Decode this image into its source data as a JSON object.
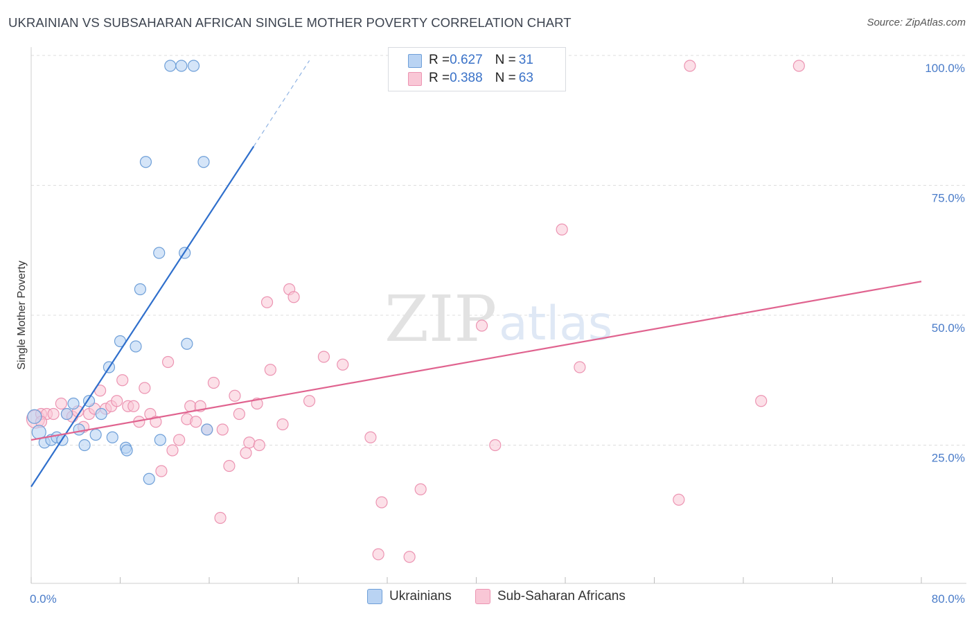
{
  "header": {
    "title": "UKRAINIAN VS SUBSAHARAN AFRICAN SINGLE MOTHER POVERTY CORRELATION CHART",
    "source": "Source: ZipAtlas.com"
  },
  "legend_top": {
    "rows": [
      {
        "r_label": "R = ",
        "r_value": "0.627",
        "n_label": "N = ",
        "n_value": "31"
      },
      {
        "r_label": "R = ",
        "r_value": "0.388",
        "n_label": "N = ",
        "n_value": "63"
      }
    ]
  },
  "legend_bottom": {
    "items": [
      "Ukrainians",
      "Sub-Saharan Africans"
    ]
  },
  "watermark": {
    "zip": "ZIP",
    "atlas": "atlas"
  },
  "colors": {
    "ukrainians_fill": "#b9d3f3",
    "ukrainians_stroke": "#6e9fd8",
    "ukrainians_line": "#2f6fcc",
    "africans_fill": "#f9c7d6",
    "africans_stroke": "#ec94b2",
    "africans_line": "#e0638f",
    "tick_text": "#4a7cc9",
    "grid": "#dddddd"
  },
  "chart_data": {
    "type": "scatter",
    "title": "UKRAINIAN VS SUBSAHARAN AFRICAN SINGLE MOTHER POVERTY CORRELATION CHART",
    "ylabel": "Single Mother Poverty",
    "xlabel": "",
    "xlim": [
      0,
      80
    ],
    "ylim": [
      0,
      100
    ],
    "x_tick_labels": [
      "0.0%",
      "80.0%"
    ],
    "y_tick_labels": [
      "25.0%",
      "50.0%",
      "75.0%",
      "100.0%"
    ],
    "y_ticks": [
      25,
      50,
      75,
      100
    ],
    "grid": "horizontal dashed",
    "series": [
      {
        "name": "Ukrainians",
        "r": 0.627,
        "n": 31,
        "trend": {
          "x_start": 0,
          "y_start": 17.0,
          "x_end": 20,
          "y_end": 82.5,
          "dashed_to_x": 25,
          "dashed_to_y": 99.0
        },
        "points": [
          [
            0.3,
            30.5
          ],
          [
            0.7,
            27.5
          ],
          [
            1.2,
            25.5
          ],
          [
            1.8,
            26.0
          ],
          [
            2.3,
            26.5
          ],
          [
            2.8,
            26.0
          ],
          [
            3.2,
            31.0
          ],
          [
            3.8,
            33.0
          ],
          [
            4.3,
            28.0
          ],
          [
            4.8,
            25.0
          ],
          [
            5.2,
            33.5
          ],
          [
            5.8,
            27.0
          ],
          [
            6.3,
            31.0
          ],
          [
            7.0,
            40.0
          ],
          [
            7.3,
            26.5
          ],
          [
            8.0,
            45.0
          ],
          [
            8.5,
            24.5
          ],
          [
            8.6,
            24.0
          ],
          [
            9.4,
            44.0
          ],
          [
            9.8,
            55.0
          ],
          [
            10.3,
            79.5
          ],
          [
            10.6,
            18.5
          ],
          [
            11.5,
            62.0
          ],
          [
            11.6,
            26.0
          ],
          [
            13.8,
            62.0
          ],
          [
            14.0,
            44.5
          ],
          [
            15.8,
            28.0
          ],
          [
            15.5,
            79.5
          ],
          [
            12.5,
            98.0
          ],
          [
            13.5,
            98.0
          ],
          [
            14.6,
            98.0
          ]
        ]
      },
      {
        "name": "Sub-Saharan Africans",
        "r": 0.388,
        "n": 63,
        "trend": {
          "x_start": 0,
          "y_start": 26.0,
          "x_end": 80,
          "y_end": 56.5
        },
        "points": [
          [
            0.4,
            30.0
          ],
          [
            0.9,
            31.0
          ],
          [
            1.4,
            31.0
          ],
          [
            2.0,
            31.0
          ],
          [
            2.7,
            33.0
          ],
          [
            3.2,
            31.0
          ],
          [
            3.7,
            30.5
          ],
          [
            4.2,
            31.5
          ],
          [
            4.7,
            28.5
          ],
          [
            5.2,
            31.0
          ],
          [
            5.7,
            32.0
          ],
          [
            6.2,
            35.5
          ],
          [
            6.7,
            32.0
          ],
          [
            7.2,
            32.5
          ],
          [
            7.7,
            33.5
          ],
          [
            8.2,
            37.5
          ],
          [
            8.7,
            32.5
          ],
          [
            9.2,
            32.5
          ],
          [
            9.7,
            29.5
          ],
          [
            10.2,
            36.0
          ],
          [
            10.7,
            31.0
          ],
          [
            11.2,
            29.5
          ],
          [
            11.7,
            20.0
          ],
          [
            12.3,
            41.0
          ],
          [
            12.7,
            24.0
          ],
          [
            13.3,
            26.0
          ],
          [
            14.0,
            30.0
          ],
          [
            14.3,
            32.5
          ],
          [
            14.8,
            29.5
          ],
          [
            15.2,
            32.5
          ],
          [
            15.8,
            28.0
          ],
          [
            16.4,
            37.0
          ],
          [
            17.0,
            11.0
          ],
          [
            17.2,
            28.0
          ],
          [
            17.8,
            21.0
          ],
          [
            18.3,
            34.5
          ],
          [
            18.7,
            31.0
          ],
          [
            19.3,
            23.5
          ],
          [
            19.6,
            25.5
          ],
          [
            20.3,
            33.0
          ],
          [
            20.5,
            25.0
          ],
          [
            21.2,
            52.5
          ],
          [
            21.5,
            39.5
          ],
          [
            22.6,
            29.0
          ],
          [
            23.2,
            55.0
          ],
          [
            23.6,
            53.5
          ],
          [
            25.0,
            33.5
          ],
          [
            26.3,
            42.0
          ],
          [
            28.0,
            40.5
          ],
          [
            30.5,
            26.5
          ],
          [
            31.2,
            4.0
          ],
          [
            31.5,
            14.0
          ],
          [
            34.0,
            3.5
          ],
          [
            35.0,
            16.5
          ],
          [
            40.5,
            48.0
          ],
          [
            41.7,
            25.0
          ],
          [
            47.7,
            66.5
          ],
          [
            49.3,
            40.0
          ],
          [
            58.2,
            14.5
          ],
          [
            65.6,
            33.5
          ],
          [
            59.2,
            98.0
          ],
          [
            69.0,
            98.0
          ],
          [
            0.9,
            29.5
          ]
        ]
      }
    ]
  }
}
